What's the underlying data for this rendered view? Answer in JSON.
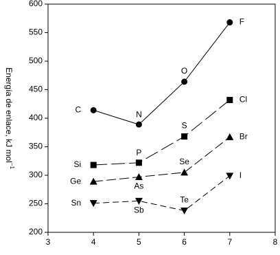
{
  "chart_data": {
    "type": "line",
    "ylabel": "Energía de enlace, kJ mol",
    "ylabel_sup": "−1",
    "x": [
      4,
      5,
      6,
      7
    ],
    "xlim": [
      3,
      8
    ],
    "xticks": [
      3,
      4,
      5,
      6,
      7,
      8
    ],
    "ylim": [
      200,
      600
    ],
    "yticks": [
      200,
      250,
      300,
      350,
      400,
      450,
      500,
      550,
      600
    ],
    "series": [
      {
        "color": "#000000",
        "marker": "circle",
        "dash": "none",
        "values": [
          414,
          389,
          464,
          568
        ],
        "labels": [
          "C",
          "N",
          "O",
          "F"
        ]
      },
      {
        "color": "#000000",
        "marker": "square",
        "dash": "20,6",
        "values": [
          318,
          322,
          368,
          432
        ],
        "labels": [
          "Si",
          "P",
          "S",
          "Cl"
        ]
      },
      {
        "color": "#000000",
        "marker": "triangle-up",
        "dash": "14,5",
        "values": [
          289,
          297,
          305,
          367
        ],
        "labels": [
          "Ge",
          "As",
          "Se",
          "Br"
        ]
      },
      {
        "color": "#000000",
        "marker": "triangle-down",
        "dash": "9,5",
        "values": [
          251,
          255,
          238,
          299
        ],
        "labels": [
          "Sn",
          "Sb",
          "Te",
          "I"
        ]
      }
    ]
  }
}
